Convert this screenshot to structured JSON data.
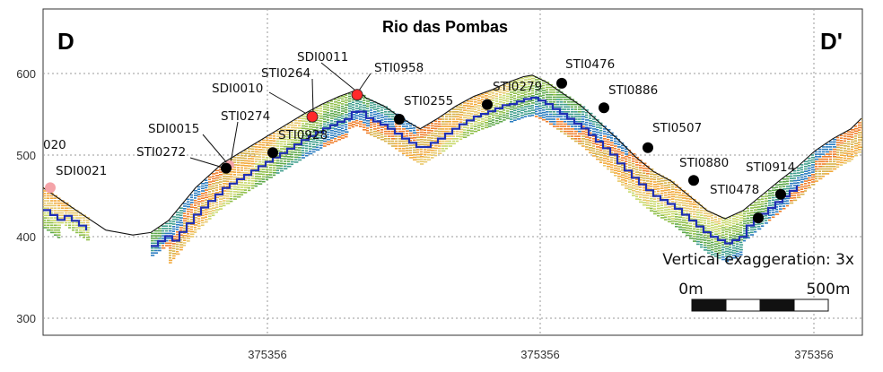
{
  "chart_data": {
    "type": "diagram",
    "title": "Rio das Pombas",
    "section_start": "D",
    "section_end": "D'",
    "y_axis": {
      "range": [
        275,
        645
      ],
      "ticks": [
        {
          "value": 300,
          "label": "300"
        },
        {
          "value": 400,
          "label": "400"
        },
        {
          "value": 500,
          "label": "500"
        },
        {
          "value": 600,
          "label": "600"
        }
      ]
    },
    "x_axis": {
      "ticks": [
        "375356",
        "375356",
        "375356"
      ]
    },
    "terrain_profile": [
      [
        0,
        460
      ],
      [
        40,
        430
      ],
      [
        70,
        408
      ],
      [
        100,
        402
      ],
      [
        120,
        405
      ],
      [
        140,
        420
      ],
      [
        170,
        460
      ],
      [
        200,
        490
      ],
      [
        230,
        510
      ],
      [
        260,
        530
      ],
      [
        290,
        550
      ],
      [
        310,
        562
      ],
      [
        330,
        572
      ],
      [
        350,
        580
      ],
      [
        360,
        570
      ],
      [
        380,
        560
      ],
      [
        400,
        545
      ],
      [
        420,
        532
      ],
      [
        440,
        545
      ],
      [
        460,
        560
      ],
      [
        480,
        572
      ],
      [
        500,
        580
      ],
      [
        520,
        590
      ],
      [
        535,
        596
      ],
      [
        545,
        598
      ],
      [
        560,
        590
      ],
      [
        580,
        575
      ],
      [
        600,
        560
      ],
      [
        620,
        540
      ],
      [
        640,
        520
      ],
      [
        660,
        498
      ],
      [
        680,
        480
      ],
      [
        700,
        468
      ],
      [
        720,
        450
      ],
      [
        740,
        432
      ],
      [
        760,
        422
      ],
      [
        780,
        432
      ],
      [
        800,
        450
      ],
      [
        820,
        468
      ],
      [
        840,
        485
      ],
      [
        860,
        505
      ],
      [
        880,
        520
      ],
      [
        900,
        532
      ],
      [
        912,
        545
      ]
    ],
    "boreholes": [
      {
        "id": "SDI0021",
        "x": 8,
        "elev": 460,
        "color": "#f4a3a8"
      },
      {
        "id": "SDI0015",
        "x": 208,
        "elev": 488,
        "color": "#f4a3a8"
      },
      {
        "id": "STI0272",
        "x": 204,
        "elev": 484,
        "color": "#000000"
      },
      {
        "id": "STI0274",
        "x": 256,
        "elev": 503,
        "color": "#000000"
      },
      {
        "id": "SDI0010",
        "x": 300,
        "elev": 547,
        "color": "#ff2a2a"
      },
      {
        "id": "STI0264",
        "x": 300,
        "elev": 547,
        "color": "#ff2a2a"
      },
      {
        "id": "SDI0011",
        "x": 350,
        "elev": 574,
        "color": "#ff2a2a"
      },
      {
        "id": "STI0958",
        "x": 350,
        "elev": 574,
        "color": "#ff2a2a"
      },
      {
        "id": "STI0928",
        "x": 256,
        "elev": 503,
        "color": "#000000"
      },
      {
        "id": "STI0255",
        "x": 397,
        "elev": 544,
        "color": "#000000"
      },
      {
        "id": "STI0279",
        "x": 495,
        "elev": 562,
        "color": "#000000"
      },
      {
        "id": "STI0476",
        "x": 578,
        "elev": 588,
        "color": "#000000"
      },
      {
        "id": "STI0886",
        "x": 625,
        "elev": 558,
        "color": "#000000"
      },
      {
        "id": "STI0507",
        "x": 674,
        "elev": 509,
        "color": "#000000"
      },
      {
        "id": "STI0880",
        "x": 725,
        "elev": 469,
        "color": "#000000"
      },
      {
        "id": "STI0478",
        "x": 797,
        "elev": 423,
        "color": "#000000"
      },
      {
        "id": "STI0914",
        "x": 822,
        "elev": 452,
        "color": "#000000"
      }
    ],
    "clipped_label": "020",
    "annotation": "Vertical exaggeration: 3x",
    "scale_bar": {
      "start_label": "0m",
      "end_label": "500m"
    }
  }
}
